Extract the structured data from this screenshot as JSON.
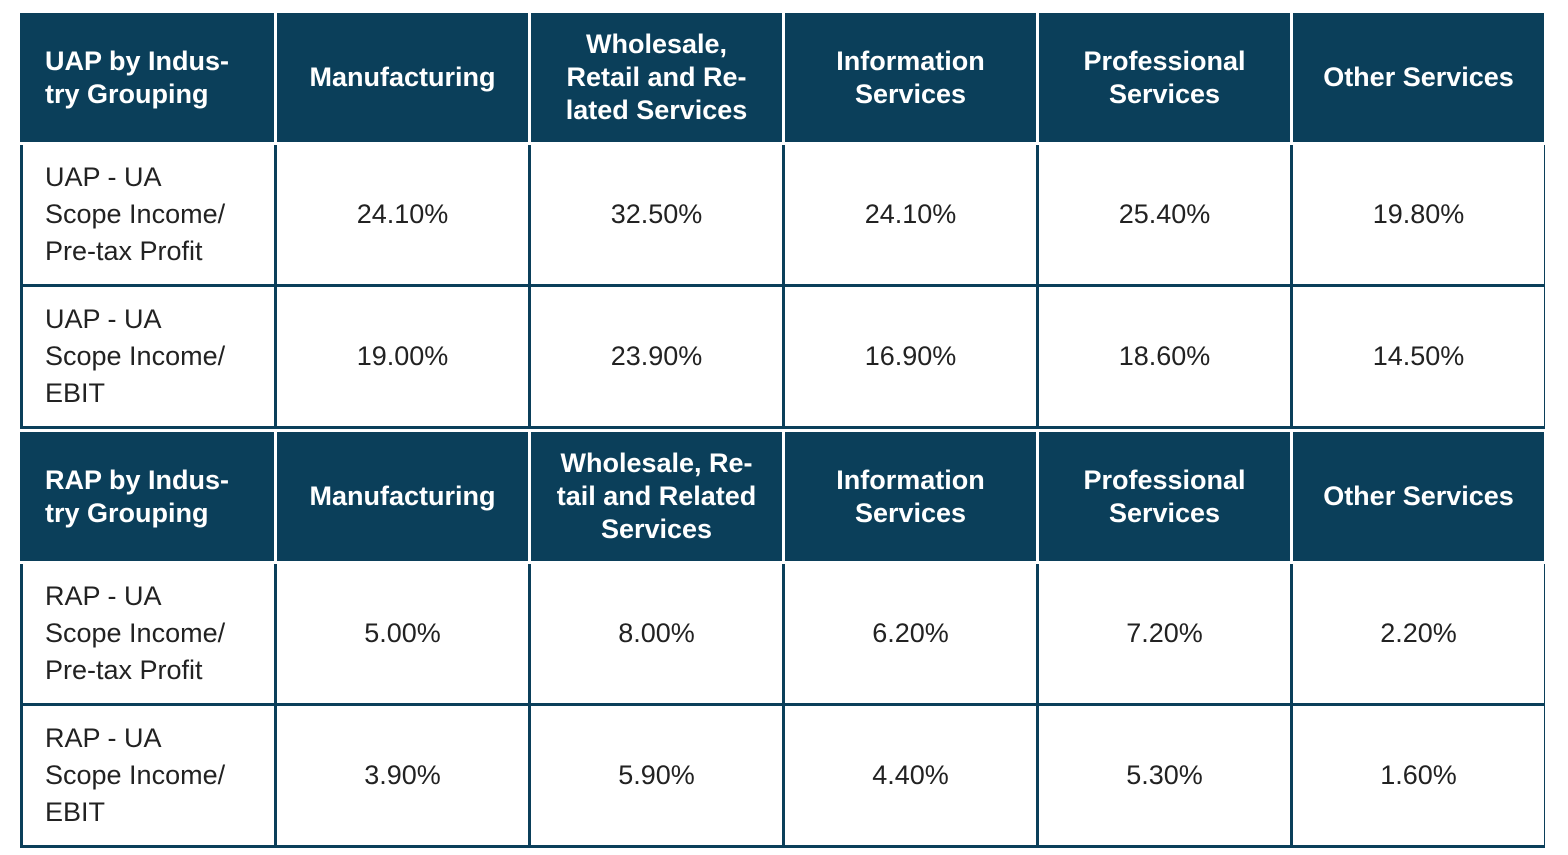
{
  "sections": [
    {
      "header": [
        "UAP by Indus-\ntry Grouping",
        "Manufacturing",
        "Wholesale,\nRetail and Re-\nlated Services",
        "Information\nServices",
        "Professional\nServices",
        "Other Services"
      ],
      "rows": [
        {
          "label": "UAP - UA\nScope Income/\nPre-tax Profit",
          "values": [
            "24.10%",
            "32.50%",
            "24.10%",
            "25.40%",
            "19.80%"
          ]
        },
        {
          "label": "UAP - UA\nScope Income/\nEBIT",
          "values": [
            "19.00%",
            "23.90%",
            "16.90%",
            "18.60%",
            "14.50%"
          ]
        }
      ]
    },
    {
      "header": [
        "RAP by Indus-\ntry Grouping",
        "Manufacturing",
        "Wholesale, Re-\ntail and Related\nServices",
        "Information\nServices",
        "Professional\nServices",
        "Other Services"
      ],
      "rows": [
        {
          "label": "RAP - UA\nScope Income/\nPre-tax Profit",
          "values": [
            "5.00%",
            "8.00%",
            "6.20%",
            "7.20%",
            "2.20%"
          ]
        },
        {
          "label": "RAP - UA\nScope Income/\nEBIT",
          "values": [
            "3.90%",
            "5.90%",
            "4.40%",
            "5.30%",
            "1.60%"
          ]
        }
      ]
    }
  ],
  "colors": {
    "header_bg": "#0b3f5a",
    "header_text": "#ffffff",
    "cell_text": "#222222"
  }
}
